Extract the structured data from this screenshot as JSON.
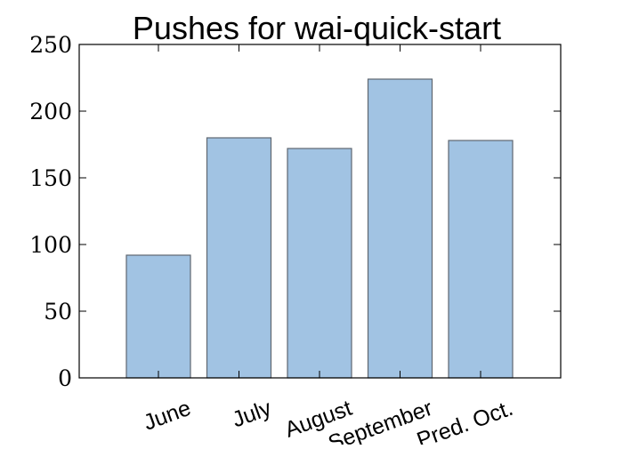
{
  "chart_data": {
    "type": "bar",
    "title": "Pushes for wai-quick-start",
    "xlabel": "",
    "ylabel": "",
    "categories": [
      "June",
      "July",
      "August",
      "September",
      "Pred. Oct."
    ],
    "values": [
      92,
      180,
      172,
      224,
      178
    ],
    "ylim": [
      0,
      250
    ],
    "yticks": [
      0,
      50,
      100,
      150,
      200,
      250
    ],
    "ytick_labels": [
      "0",
      "50",
      "100",
      "150",
      "200",
      "250"
    ],
    "xtick_rotation_deg": -20,
    "grid": false,
    "legend": "none",
    "colors": {
      "bar_fill": "#a1c3e3",
      "bar_edge": "#5f6670",
      "axis": "#000000",
      "text": "#000000",
      "background": "#ffffff"
    }
  }
}
